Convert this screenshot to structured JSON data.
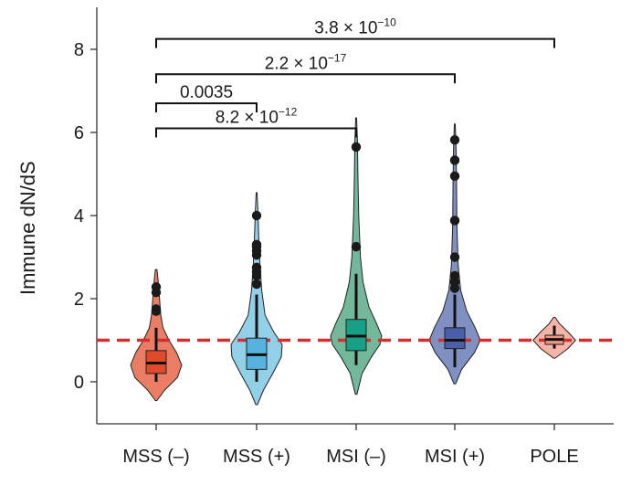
{
  "chart_data": {
    "type": "violin",
    "ylabel": "Immune dN/dS",
    "xlabel": "",
    "ylim": [
      -1,
      8.7
    ],
    "yticks": [
      0,
      2,
      4,
      6,
      8
    ],
    "reference_line": {
      "y": 1,
      "color": "#d32f2f",
      "style": "dashed"
    },
    "groups": [
      {
        "name": "MSS (–)",
        "color": "#e8664a",
        "box_color": "#e04a2a",
        "violin": [
          [
            -0.45,
            0.02
          ],
          [
            -0.2,
            0.2
          ],
          [
            0.1,
            0.5
          ],
          [
            0.4,
            0.6
          ],
          [
            0.7,
            0.48
          ],
          [
            1.0,
            0.3
          ],
          [
            1.3,
            0.16
          ],
          [
            1.6,
            0.11
          ],
          [
            2.0,
            0.08
          ],
          [
            2.4,
            0.05
          ],
          [
            2.7,
            0.02
          ]
        ],
        "q1": 0.2,
        "median": 0.45,
        "q3": 0.75,
        "whisker_low": 0.0,
        "whisker_high": 1.3,
        "outliers": [
          1.7,
          1.75,
          2.15,
          2.28
        ]
      },
      {
        "name": "MSS (+)",
        "color": "#7ec8e3",
        "box_color": "#55b4dd",
        "violin": [
          [
            -0.55,
            0.02
          ],
          [
            -0.2,
            0.16
          ],
          [
            0.2,
            0.38
          ],
          [
            0.6,
            0.58
          ],
          [
            0.9,
            0.6
          ],
          [
            1.2,
            0.4
          ],
          [
            1.6,
            0.2
          ],
          [
            2.2,
            0.12
          ],
          [
            2.8,
            0.08
          ],
          [
            3.5,
            0.05
          ],
          [
            4.1,
            0.03
          ],
          [
            4.55,
            0.01
          ]
        ],
        "q1": 0.3,
        "median": 0.65,
        "q3": 1.05,
        "whisker_low": 0.0,
        "whisker_high": 2.1,
        "outliers": [
          2.35,
          2.55,
          2.65,
          2.75,
          3.05,
          3.15,
          3.25,
          3.3,
          4.0
        ]
      },
      {
        "name": "MSI (–)",
        "color": "#5aab8a",
        "box_color": "#17a085",
        "violin": [
          [
            -0.3,
            0.02
          ],
          [
            0.2,
            0.14
          ],
          [
            0.6,
            0.36
          ],
          [
            0.9,
            0.56
          ],
          [
            1.1,
            0.6
          ],
          [
            1.4,
            0.48
          ],
          [
            1.8,
            0.3
          ],
          [
            2.4,
            0.16
          ],
          [
            3.0,
            0.1
          ],
          [
            4.0,
            0.06
          ],
          [
            5.0,
            0.04
          ],
          [
            5.8,
            0.03
          ],
          [
            6.35,
            0.01
          ]
        ],
        "q1": 0.75,
        "median": 1.1,
        "q3": 1.5,
        "whisker_low": 0.4,
        "whisker_high": 2.6,
        "outliers": [
          3.25,
          5.65
        ]
      },
      {
        "name": "MSI (+)",
        "color": "#6b7db8",
        "box_color": "#4a5fa8",
        "violin": [
          [
            -0.05,
            0.02
          ],
          [
            0.3,
            0.16
          ],
          [
            0.7,
            0.46
          ],
          [
            1.0,
            0.6
          ],
          [
            1.3,
            0.48
          ],
          [
            1.7,
            0.28
          ],
          [
            2.2,
            0.14
          ],
          [
            2.8,
            0.08
          ],
          [
            3.8,
            0.05
          ],
          [
            4.8,
            0.04
          ],
          [
            5.6,
            0.03
          ],
          [
            6.2,
            0.01
          ]
        ],
        "q1": 0.8,
        "median": 1.0,
        "q3": 1.3,
        "whisker_low": 0.35,
        "whisker_high": 2.1,
        "outliers": [
          2.25,
          2.4,
          2.55,
          3.0,
          3.88,
          4.95,
          5.33,
          5.82
        ]
      },
      {
        "name": "POLE",
        "color": "#f4a79a",
        "box_color": "#f19484",
        "violin": [
          [
            0.57,
            0.02
          ],
          [
            0.8,
            0.32
          ],
          [
            1.0,
            0.5
          ],
          [
            1.2,
            0.32
          ],
          [
            1.4,
            0.12
          ],
          [
            1.55,
            0.02
          ]
        ],
        "q1": 0.9,
        "median": 1.02,
        "q3": 1.12,
        "whisker_low": 0.8,
        "whisker_high": 1.35,
        "outliers": []
      }
    ],
    "comparisons": [
      {
        "from": 0,
        "to": 4,
        "y": 8.25,
        "label_base": "3.8 × 10",
        "label_exp": "−10"
      },
      {
        "from": 0,
        "to": 3,
        "y": 7.4,
        "label_base": "2.2 × 10",
        "label_exp": "−17"
      },
      {
        "from": 0,
        "to": 1,
        "y": 6.7,
        "label": "0.0035"
      },
      {
        "from": 0,
        "to": 2,
        "y": 6.1,
        "label_base": "8.2 × 10",
        "label_exp": "−12"
      }
    ]
  }
}
